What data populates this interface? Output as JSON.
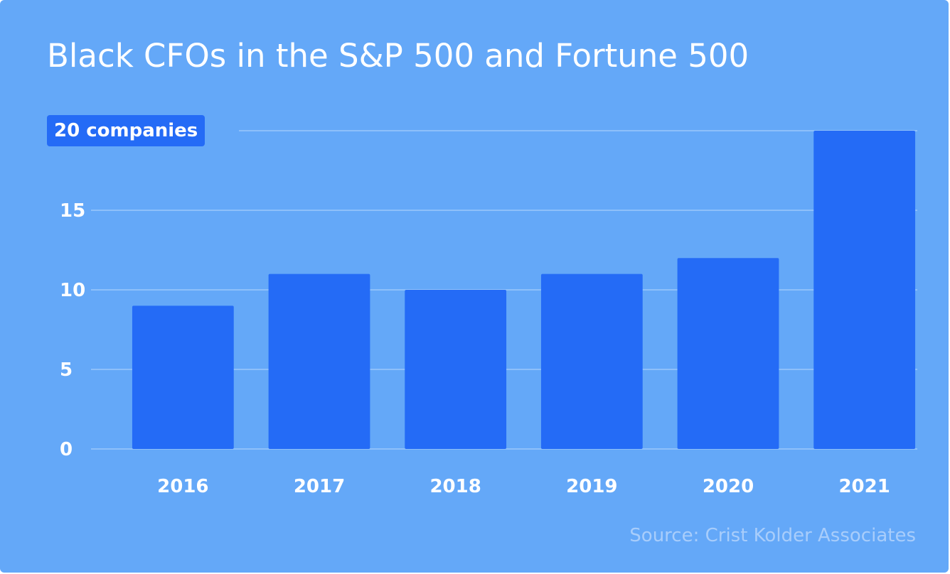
{
  "chart_data": {
    "type": "bar",
    "title": "Black CFOs in the S&P 500 and Fortune 500",
    "categories": [
      "2016",
      "2017",
      "2018",
      "2019",
      "2020",
      "2021"
    ],
    "values": [
      9,
      11,
      10,
      11,
      12,
      20
    ],
    "ylim": [
      0,
      20
    ],
    "yticks": [
      0,
      5,
      10,
      15
    ],
    "top_tick_label": "20 companies",
    "xlabel": "",
    "ylabel": "",
    "source": "Source: Crist Kolder Associates",
    "colors": {
      "background": "#64a8f8",
      "bar": "#246bf6",
      "grid": "#8ec0fa",
      "source": "#a8cdfb"
    }
  }
}
